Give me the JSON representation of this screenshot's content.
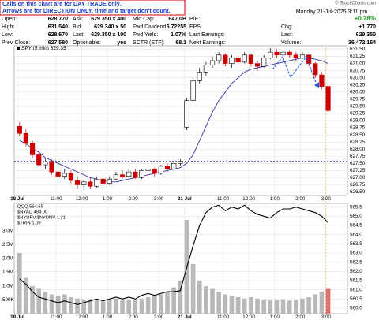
{
  "header": {
    "note": [
      "Calls on this chart are for DAY TRADE only.",
      "Arrows are for DIRECTION ONLY, time and target don't count."
    ],
    "credit": "© StockCharts.com",
    "datetime": "Monday  21-Jul-2025  3:11 pm",
    "grid": [
      [
        {
          "label": "Open:",
          "value": "628.770"
        },
        {
          "label": "Ask:",
          "value": "629.350 x 400"
        },
        {
          "label": "Mkt Cap:",
          "value": "647.0B"
        },
        {
          "label": "P/E:"
        },
        {
          "value": "+0.28%"
        }
      ],
      [
        {
          "label": "High:",
          "value": "631.540"
        },
        {
          "label": "Bid:",
          "value": "629.340 x 50"
        },
        {
          "label": "Fwd Dividend:",
          "value": "6.72255"
        },
        {
          "label": "EPS:"
        },
        {
          "label": "Chg:",
          "value": "+1.770"
        }
      ],
      [
        {
          "label": "Low:",
          "value": "628.670"
        },
        {
          "label": "Last:",
          "value": "629.350 x 100"
        },
        {
          "label": "Fwd Yield:",
          "value": "1.07%"
        },
        {
          "label": "Last Earnings:"
        },
        {
          "label": "Last:",
          "value": "629.350"
        }
      ],
      [
        {
          "label": "Prev Close:",
          "value": "627.580"
        },
        {
          "label": "Optionable:",
          "value": "yes"
        },
        {
          "label": "SCTR (ETF):",
          "value": "68.1"
        },
        {
          "label": "Next Earnings:"
        },
        {
          "label": "Volume:",
          "value": "36,472,164"
        }
      ]
    ]
  },
  "chart_data": [
    {
      "type": "candlestick",
      "legend": "SPY (5 min) 629.35",
      "up_color": "#000000",
      "down_color": "#cc0000",
      "x": [
        1,
        4,
        7,
        10,
        13,
        16,
        19,
        22,
        25,
        28,
        31,
        34,
        37,
        40,
        43,
        46,
        49,
        52,
        55,
        58,
        61,
        64,
        67,
        70,
        73,
        76,
        79,
        82,
        85,
        88,
        91,
        94,
        97,
        100,
        103,
        106,
        109,
        112,
        115,
        118,
        121,
        124,
        127,
        130,
        133,
        136,
        139,
        142,
        145
      ],
      "open": [
        628.8,
        628.55,
        628.2,
        627.8,
        627.45,
        627.55,
        627.2,
        627.05,
        627.15,
        626.9,
        626.75,
        626.85,
        626.7,
        626.95,
        626.8,
        626.95,
        627.1,
        627.05,
        627.2,
        627.0,
        627.25,
        627.3,
        627.15,
        627.4,
        627.3,
        627.5,
        628.77,
        629.7,
        630.4,
        630.7,
        630.95,
        631.1,
        631.3,
        631.0,
        631.2,
        631.05,
        631.3,
        631.0,
        630.9,
        631.2,
        631.4,
        631.3,
        631.4,
        631.3,
        631.2,
        631.3,
        631.0,
        630.6,
        630.2
      ],
      "high": [
        628.95,
        628.7,
        628.3,
        627.95,
        627.7,
        627.65,
        627.4,
        627.3,
        627.25,
        627.05,
        626.95,
        627.0,
        627.05,
        627.1,
        627.05,
        627.2,
        627.25,
        627.3,
        627.3,
        627.3,
        627.4,
        627.35,
        627.45,
        627.5,
        627.6,
        627.65,
        629.8,
        630.5,
        630.85,
        631.05,
        631.25,
        631.4,
        631.35,
        631.3,
        631.3,
        631.4,
        631.35,
        631.1,
        631.3,
        631.54,
        631.5,
        631.5,
        631.45,
        631.4,
        631.4,
        631.35,
        631.05,
        630.7,
        630.3
      ],
      "low": [
        628.45,
        628.1,
        627.7,
        627.35,
        627.3,
        627.1,
        626.9,
        626.95,
        626.8,
        626.6,
        626.55,
        626.6,
        626.65,
        626.7,
        626.75,
        626.9,
        626.95,
        627.0,
        626.95,
        626.95,
        627.1,
        627.05,
        627.1,
        627.2,
        627.25,
        627.4,
        628.67,
        629.6,
        630.3,
        630.55,
        630.85,
        631.0,
        630.9,
        630.85,
        630.95,
        631.0,
        630.9,
        630.75,
        630.85,
        631.15,
        631.2,
        631.25,
        631.2,
        631.1,
        631.15,
        630.9,
        630.5,
        630.1,
        629.3
      ],
      "close": [
        628.55,
        628.2,
        627.8,
        627.45,
        627.55,
        627.2,
        627.05,
        627.15,
        626.9,
        626.75,
        626.85,
        626.7,
        626.95,
        626.8,
        626.95,
        627.1,
        627.05,
        627.2,
        627.0,
        627.25,
        627.3,
        627.15,
        627.4,
        627.3,
        627.5,
        627.58,
        629.7,
        630.4,
        630.7,
        630.95,
        631.1,
        631.3,
        631.0,
        631.2,
        631.05,
        631.3,
        631.0,
        630.9,
        631.2,
        631.4,
        631.3,
        631.4,
        631.3,
        631.2,
        631.3,
        631.0,
        630.6,
        630.2,
        629.35
      ],
      "ma": {
        "color": "#3333aa",
        "values": [
          628.3,
          628.2,
          628.0,
          627.9,
          627.7,
          627.6,
          627.5,
          627.4,
          627.3,
          627.2,
          627.1,
          627.0,
          626.95,
          626.9,
          626.85,
          626.85,
          626.9,
          626.95,
          627.0,
          627.05,
          627.1,
          627.15,
          627.2,
          627.25,
          627.3,
          627.35,
          627.5,
          627.8,
          628.3,
          628.8,
          629.3,
          629.7,
          630.0,
          630.3,
          630.5,
          630.7,
          630.8,
          630.85,
          630.9,
          630.95,
          631.0,
          631.05,
          631.1,
          631.15,
          631.2,
          631.2,
          631.15,
          631.1,
          631.0
        ]
      },
      "reference_line": {
        "value": 627.58,
        "color": "#2233cc"
      },
      "xlim": [
        -1.5,
        154
      ],
      "ylim": [
        626.375,
        631.625
      ],
      "xticks": [
        {
          "value": 0,
          "label": "18 Jul"
        },
        {
          "value": 18,
          "label": "11:00"
        },
        {
          "value": 30,
          "label": "12:00"
        },
        {
          "value": 42,
          "label": "1:00"
        },
        {
          "value": 54,
          "label": "2:00"
        },
        {
          "value": 66,
          "label": "3:00"
        },
        {
          "value": 78,
          "label": "21 Jul"
        },
        {
          "value": 96,
          "label": "11:00"
        },
        {
          "value": 108,
          "label": "12:00"
        },
        {
          "value": 120,
          "label": "1:00"
        },
        {
          "value": 132,
          "label": "2:00"
        },
        {
          "value": 144,
          "label": "3:00"
        }
      ],
      "yticks": [
        {
          "value": 631.5,
          "label": "631.50"
        },
        631.25,
        {
          "value": 631.0,
          "label": "631.00"
        },
        630.75,
        {
          "value": 630.5,
          "label": "630.50"
        },
        630.25,
        {
          "value": 630.0,
          "label": "630.00"
        },
        629.75,
        {
          "value": 629.5,
          "label": "629.50"
        },
        629.25,
        {
          "value": 629.0,
          "label": "629.00"
        },
        628.75,
        {
          "value": 628.5,
          "label": "628.50"
        },
        628.25,
        {
          "value": 628.0,
          "label": "628.00"
        },
        627.75,
        {
          "value": 627.5,
          "label": "627.50"
        },
        627.25,
        {
          "value": 627.0,
          "label": "627.00"
        },
        626.75,
        {
          "value": 626.5,
          "label": "626.50"
        }
      ],
      "grid": true
    },
    {
      "type": "line",
      "legend": [
        "QQQ 564.65",
        "$NYAD 494.00",
        "$NYUPV:$NYDNV 1.31",
        "$TRIN 1.09"
      ],
      "x": [
        1,
        4,
        7,
        10,
        13,
        16,
        19,
        22,
        25,
        28,
        31,
        34,
        37,
        40,
        43,
        46,
        49,
        52,
        55,
        58,
        61,
        64,
        67,
        70,
        73,
        76,
        79,
        82,
        85,
        88,
        91,
        94,
        97,
        100,
        103,
        106,
        109,
        112,
        115,
        118,
        121,
        124,
        127,
        130,
        133,
        136,
        139,
        142,
        145
      ],
      "series": [
        {
          "name": "QQQ",
          "color": "#000000",
          "values": [
            561.6,
            561.3,
            560.9,
            560.6,
            560.5,
            560.4,
            560.3,
            560.4,
            560.3,
            560.2,
            560.3,
            560.4,
            560.5,
            560.4,
            560.5,
            560.6,
            560.5,
            560.6,
            560.5,
            560.7,
            560.8,
            560.7,
            560.8,
            560.9,
            560.9,
            560.95,
            562.2,
            563.4,
            564.5,
            565.2,
            565.5,
            565.6,
            565.3,
            565.5,
            565.4,
            565.6,
            565.3,
            565.1,
            565.0,
            564.9,
            565.2,
            565.4,
            565.4,
            565.5,
            565.4,
            565.3,
            565.2,
            565.0,
            564.65
          ]
        }
      ],
      "volume": {
        "color": "#b8b8b8",
        "values": [
          2200000,
          1300000,
          1000000,
          900000,
          800000,
          700000,
          650000,
          700000,
          600000,
          550000,
          500000,
          520000,
          480000,
          450000,
          500000,
          550000,
          480000,
          500000,
          520000,
          550000,
          600000,
          650000,
          700000,
          800000,
          950000,
          1200000,
          3400000,
          1800000,
          1200000,
          1000000,
          900000,
          800000,
          700000,
          650000,
          600000,
          550000,
          600000,
          550000,
          500000,
          480000,
          500000,
          520000,
          480000,
          500000,
          550000,
          600000,
          700000,
          800000,
          900000
        ],
        "lim": [
          0,
          4000000
        ],
        "ticks": [
          {
            "value": 3000000,
            "label": "3.0M"
          },
          {
            "value": 2500000,
            "label": "2.5M"
          },
          {
            "value": 2000000,
            "label": "2.0M"
          },
          {
            "value": 1500000,
            "label": "1.5M"
          },
          {
            "value": 1000000,
            "label": "1.0M"
          },
          {
            "value": 500000,
            "label": "500K"
          }
        ]
      },
      "xlim": [
        -1.5,
        154
      ],
      "ylim": [
        559.7,
        565.7
      ],
      "yticks": [
        565.5,
        {
          "value": 565.0,
          "label": "565.0"
        },
        564.5,
        {
          "value": 564.0,
          "label": "564.0"
        },
        563.5,
        {
          "value": 563.0,
          "label": "563.0"
        },
        562.5,
        {
          "value": 562.0,
          "label": "562.0"
        },
        561.5,
        {
          "value": 561.0,
          "label": "561.0"
        },
        560.5,
        {
          "value": 560.0,
          "label": "560.0"
        }
      ],
      "grid": true
    }
  ]
}
